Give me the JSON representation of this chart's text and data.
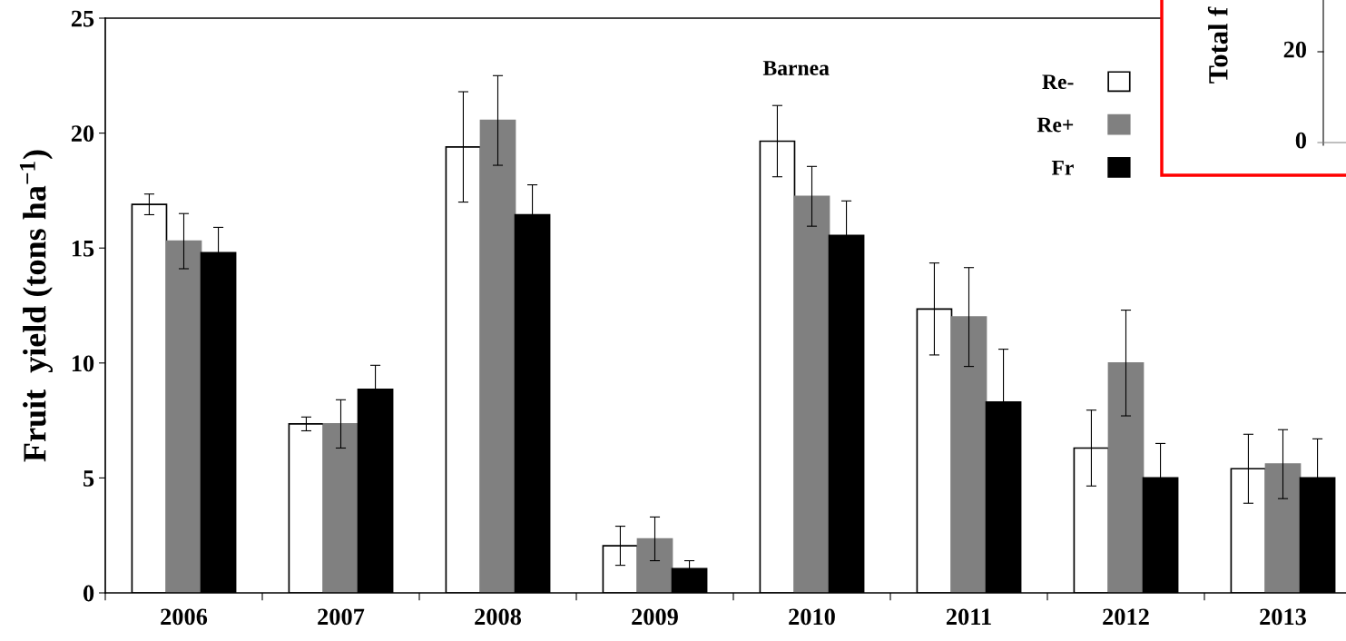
{
  "chart_data": [
    {
      "type": "bar",
      "title": "Barnea",
      "ylabel": "Fruit  yield (tons ha$^{−1}$)",
      "categories": [
        "2006",
        "2007",
        "2008",
        "2009",
        "2010",
        "2011",
        "2012",
        "2013"
      ],
      "series": [
        {
          "name": "Re-",
          "color": "#ffffff",
          "values": [
            16.9,
            7.35,
            19.4,
            2.05,
            19.65,
            12.35,
            6.3,
            5.4
          ],
          "errors": [
            0.45,
            0.3,
            2.4,
            0.85,
            1.55,
            2.0,
            1.65,
            1.5
          ]
        },
        {
          "name": "Re+",
          "color": "#808080",
          "values": [
            15.3,
            7.35,
            20.55,
            2.35,
            17.25,
            12.0,
            10.0,
            5.6
          ],
          "errors": [
            1.2,
            1.05,
            1.95,
            0.95,
            1.3,
            2.15,
            2.3,
            1.5
          ]
        },
        {
          "name": "Fr",
          "color": "#000000",
          "values": [
            14.8,
            8.85,
            16.45,
            1.05,
            15.55,
            8.3,
            5.0,
            5.0
          ],
          "errors": [
            1.1,
            1.05,
            1.3,
            0.35,
            1.5,
            2.3,
            1.5,
            1.7
          ]
        }
      ],
      "ylim": [
        0,
        25
      ],
      "yticks": [
        0,
        5,
        10,
        15,
        20,
        25
      ],
      "grid": false,
      "legend": "top right"
    },
    {
      "type": "other",
      "ylabel": "Total f",
      "annotations": [
        "20",
        "0"
      ]
    }
  ]
}
